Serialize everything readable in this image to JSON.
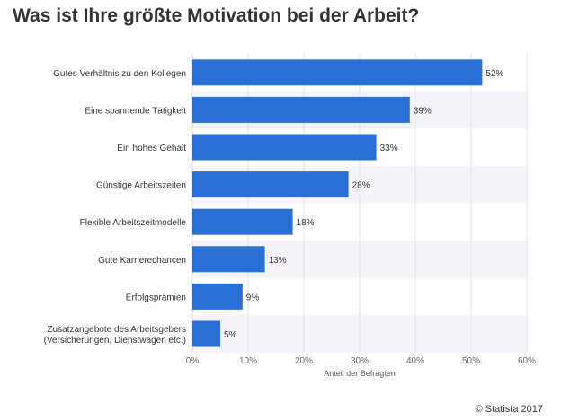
{
  "title": "Was ist Ihre größte Motivation bei der Arbeit?",
  "credit": "© Statista 2017",
  "colors": {
    "bar": "#2a6fd6",
    "band": "#f6f4fa",
    "grid": "#e2e2e2"
  },
  "chart_data": {
    "type": "bar",
    "orientation": "horizontal",
    "categories": [
      [
        "Gutes Verhältnis zu den Kollegen"
      ],
      [
        "Eine spannende Tätigkeit"
      ],
      [
        "Ein hohes Gehalt"
      ],
      [
        "Günstige Arbeitszeiten"
      ],
      [
        "Flexible Arbeitszeitmodelle"
      ],
      [
        "Gute Karrierechancen"
      ],
      [
        "Erfolgsprämien"
      ],
      [
        "Zusatzangebote des Arbeitsgebers",
        "(Versicherungen, Dienstwagen etc.)"
      ]
    ],
    "values": [
      52,
      39,
      33,
      28,
      18,
      13,
      9,
      5
    ],
    "value_labels": [
      "52%",
      "39%",
      "33%",
      "28%",
      "18%",
      "13%",
      "9%",
      "5%"
    ],
    "xlabel": "Anteil der Befragten",
    "xlim": [
      0,
      60
    ],
    "xticks": [
      0,
      10,
      20,
      30,
      40,
      50,
      60
    ],
    "xtick_labels": [
      "0%",
      "10%",
      "20%",
      "30%",
      "40%",
      "50%",
      "60%"
    ],
    "grid": true
  }
}
